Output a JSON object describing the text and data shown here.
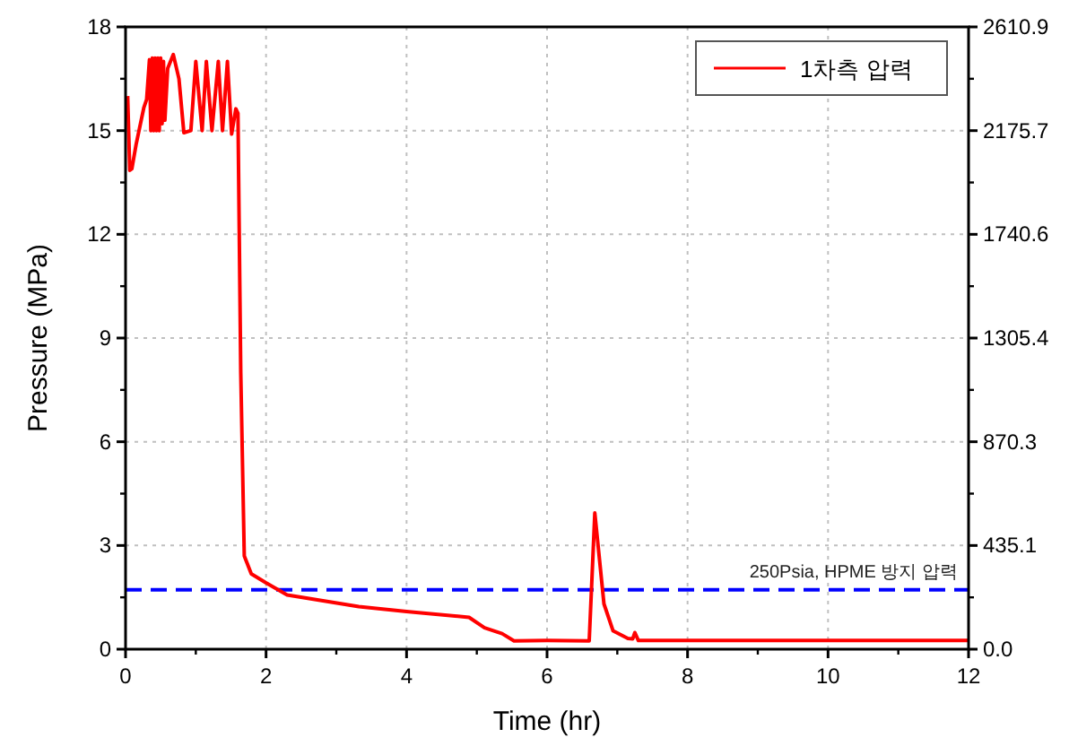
{
  "chart_data": {
    "type": "line",
    "xlabel": "Time (hr)",
    "ylabel": "Pressure (MPa)",
    "xlim": [
      0,
      12
    ],
    "xticks": [
      0,
      2,
      4,
      6,
      8,
      10,
      12
    ],
    "ylim": [
      0,
      18
    ],
    "yticks": [
      0,
      3,
      6,
      9,
      12,
      15,
      18
    ],
    "y2lim": [
      0,
      2610.9
    ],
    "y2ticks": [
      {
        "value": 0,
        "label": "0.0"
      },
      435.1,
      870.3,
      1305.4,
      1740.6,
      2175.7,
      2610.9
    ],
    "grid": true,
    "legend": "top right",
    "line_style": "solid",
    "series": [
      {
        "name": "1차측 압력",
        "color": "#ff0000",
        "x": [
          0.03,
          0.06,
          0.09,
          0.15,
          0.26,
          0.3,
          0.34,
          0.36,
          0.38,
          0.4,
          0.42,
          0.44,
          0.46,
          0.48,
          0.5,
          0.52,
          0.54,
          0.56,
          0.6,
          0.68,
          0.76,
          0.83,
          0.93,
          1.0,
          1.09,
          1.15,
          1.23,
          1.32,
          1.38,
          1.45,
          1.51,
          1.57,
          1.6,
          1.64,
          1.69,
          1.79,
          2.0,
          2.3,
          2.81,
          3.32,
          4.0,
          4.89,
          5.11,
          5.36,
          5.53,
          6.0,
          6.6,
          6.68,
          6.81,
          6.94,
          7.15,
          7.22,
          7.25,
          7.3,
          8.0,
          10.0,
          12.0
        ],
        "values": [
          16.0,
          13.85,
          13.9,
          14.6,
          15.66,
          15.9,
          17.05,
          15.0,
          17.1,
          15.0,
          17.1,
          15.0,
          17.1,
          15.0,
          17.1,
          15.2,
          17.0,
          15.3,
          16.8,
          17.2,
          16.5,
          14.94,
          15.0,
          17.0,
          15.0,
          17.0,
          15.0,
          17.0,
          15.0,
          17.0,
          14.9,
          15.63,
          15.5,
          8.0,
          2.7,
          2.18,
          1.92,
          1.57,
          1.4,
          1.23,
          1.09,
          0.92,
          0.62,
          0.45,
          0.24,
          0.25,
          0.24,
          3.94,
          1.31,
          0.53,
          0.31,
          0.3,
          0.48,
          0.25,
          0.25,
          0.25,
          0.25
        ]
      }
    ],
    "ref_lines": [
      {
        "axis": "y",
        "value": 1.72,
        "label": "250Psia, HPME 방지 압력",
        "color": "#0000ff",
        "line_style": "dashed"
      }
    ]
  }
}
